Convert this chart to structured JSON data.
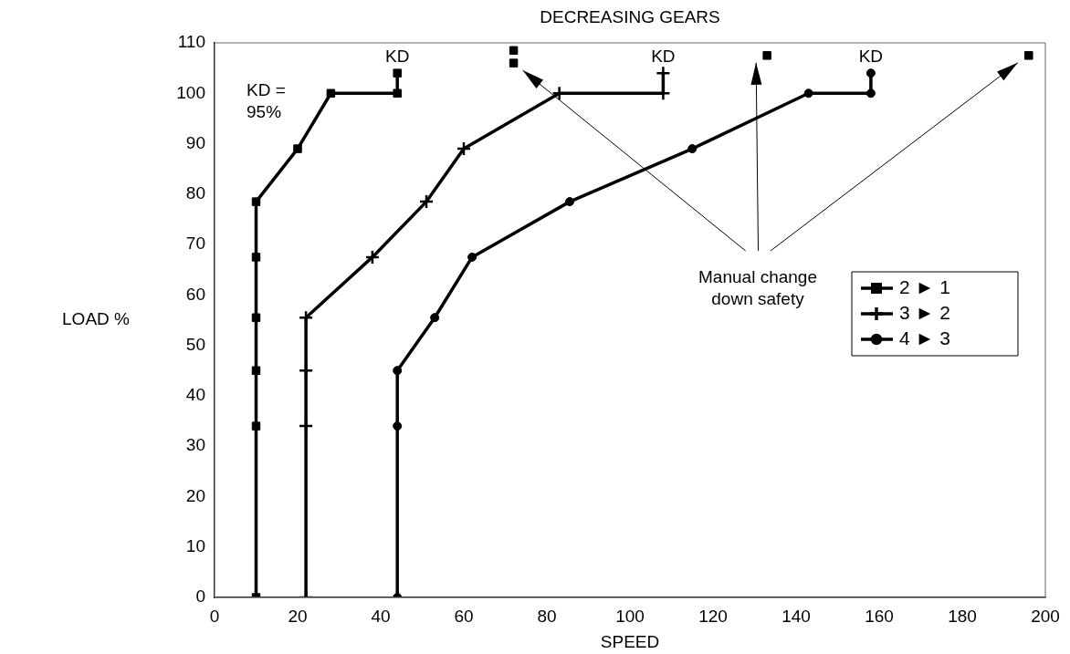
{
  "chart_data": {
    "type": "line",
    "title": "DECREASING GEARS",
    "xlabel": "SPEED",
    "ylabel": "LOAD %",
    "xlim": [
      0,
      200
    ],
    "xticks": [
      0,
      20,
      40,
      60,
      80,
      100,
      120,
      140,
      160,
      180,
      200
    ],
    "ylim": [
      0,
      110
    ],
    "yticks": [
      0,
      10,
      20,
      30,
      40,
      50,
      60,
      70,
      80,
      90,
      100,
      110
    ],
    "grid": false,
    "legend": "right",
    "line_style": "solid",
    "series": [
      {
        "name": "2 ► 1",
        "color": "#000000",
        "marker": "square",
        "x": [
          10,
          10,
          10,
          10,
          10,
          10,
          20,
          28,
          44,
          44
        ],
        "values": [
          0,
          34,
          45,
          55.5,
          67.5,
          78.5,
          89,
          100,
          100,
          104
        ]
      },
      {
        "name": "3 ► 2",
        "color": "#000000",
        "marker": "cross",
        "x": [
          22,
          22,
          22,
          22,
          38,
          51,
          60,
          83,
          108,
          108
        ],
        "values": [
          0,
          34,
          45,
          55.5,
          67.5,
          78.5,
          89,
          100,
          100,
          104
        ]
      },
      {
        "name": "4 ► 3",
        "color": "#000000",
        "marker": "circle",
        "x": [
          44,
          44,
          44,
          53,
          62,
          85.5,
          115,
          143,
          158,
          158
        ],
        "values": [
          0,
          34,
          45,
          55.5,
          67.5,
          78.5,
          89,
          100,
          100,
          104
        ]
      },
      {
        "type": "scatter",
        "color": "#000000",
        "marker": "square",
        "x": [
          72,
          72
        ],
        "values": [
          106,
          108.5
        ]
      },
      {
        "type": "scatter",
        "color": "#000000",
        "marker": "square",
        "x": [
          133,
          196
        ],
        "values": [
          107.5,
          107.5
        ]
      }
    ],
    "annotations": [
      {
        "text": "KD",
        "x": 44,
        "y": 104
      },
      {
        "text": "KD",
        "x": 108,
        "y": 104
      },
      {
        "text": "KD",
        "x": 158,
        "y": 104
      },
      "KD =\n95%",
      "Manual change\ndown safety"
    ]
  }
}
